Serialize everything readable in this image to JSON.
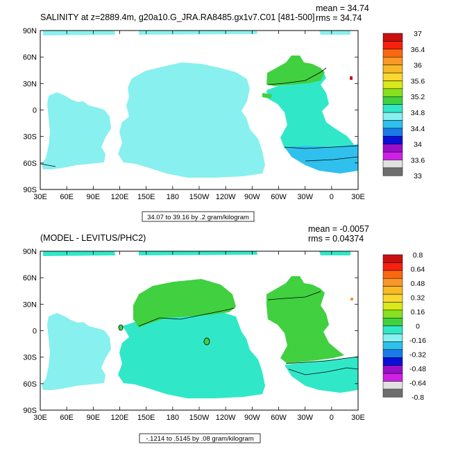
{
  "chart_data": [
    {
      "type": "heatmap",
      "title": "SALINITY at z=2889.4m, g20a10.G_JRA.RA8485.gx1v7.C01 [481-500]",
      "stats": {
        "mean": "mean = 34.74",
        "rms": "rms = 34.74"
      },
      "xticks": [
        "30E",
        "60E",
        "90E",
        "120E",
        "150E",
        "180",
        "150W",
        "120W",
        "90W",
        "60W",
        "30W",
        "0",
        "30E"
      ],
      "yticks": [
        "90N",
        "60N",
        "30N",
        "0",
        "30S",
        "60S",
        "90S"
      ],
      "xlim": [
        30,
        390
      ],
      "ylim": [
        -90,
        90
      ],
      "colorbar": {
        "colors": [
          "#6e6e6e",
          "#e0e0e0",
          "#d020e8",
          "#9a10c8",
          "#0a10d8",
          "#1a7ae8",
          "#30c0ee",
          "#88f0ee",
          "#30e8c8",
          "#40d040",
          "#88e020",
          "#d8e818",
          "#f8d830",
          "#f8b828",
          "#f89828",
          "#f86810",
          "#f82010",
          "#c81010"
        ],
        "labels": [
          "33",
          "33.6",
          "34",
          "34.4",
          "34.8",
          "35.2",
          "35.6",
          "36",
          "36.4",
          "37"
        ]
      },
      "range_note": "34.07 to 39.16 by .2 gram/kilogram",
      "ocean_color": "#88f0ee",
      "atlantic_color": "#30e8c8",
      "north_atlantic_color": "#40d040",
      "southern_ocean_color": "#30c0ee"
    },
    {
      "type": "heatmap",
      "title": "(MODEL - LEVITUS/PHC2)",
      "stats": {
        "mean": "mean = -0.0057",
        "rms": "rms = 0.04374"
      },
      "xticks": [
        "30E",
        "60E",
        "90E",
        "120E",
        "150E",
        "180",
        "150W",
        "120W",
        "90W",
        "60W",
        "30W",
        "0",
        "30E"
      ],
      "yticks": [
        "90N",
        "60N",
        "30N",
        "0",
        "30S",
        "60S",
        "90S"
      ],
      "xlim": [
        30,
        390
      ],
      "ylim": [
        -90,
        90
      ],
      "colorbar": {
        "colors": [
          "#6e6e6e",
          "#e0e0e0",
          "#d020e8",
          "#9a10c8",
          "#0a10d8",
          "#1a7ae8",
          "#30c0ee",
          "#88f0ee",
          "#30e8c8",
          "#40d040",
          "#88e020",
          "#d8e818",
          "#f8d830",
          "#f8b828",
          "#f89828",
          "#f86810",
          "#f82010",
          "#c81010"
        ],
        "labels": [
          "-0.8",
          "-0.64",
          "-0.48",
          "-0.32",
          "-0.16",
          "0",
          "0.16",
          "0.32",
          "0.48",
          "0.64",
          "0.8"
        ]
      },
      "range_note": "-.1214 to .5145 by .08 gram/kilogram",
      "ocean_color": "#30e8c8",
      "positive_color": "#40d040",
      "negative_color": "#88f0ee"
    }
  ]
}
